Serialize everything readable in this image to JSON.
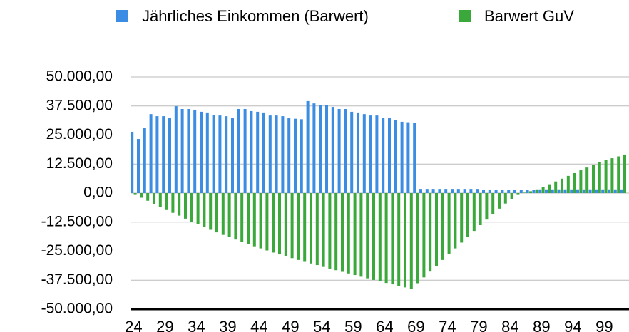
{
  "chart_data": {
    "type": "bar",
    "categories": [
      "24",
      null,
      null,
      null,
      null,
      "29",
      null,
      null,
      null,
      null,
      "34",
      null,
      null,
      null,
      null,
      "39",
      null,
      null,
      null,
      null,
      "44",
      null,
      null,
      null,
      null,
      "49",
      null,
      null,
      null,
      null,
      "54",
      null,
      null,
      null,
      null,
      "59",
      null,
      null,
      null,
      null,
      "64",
      null,
      null,
      null,
      null,
      "69",
      null,
      null,
      null,
      null,
      "74",
      null,
      null,
      null,
      null,
      "79",
      null,
      null,
      null,
      null,
      "84",
      null,
      null,
      null,
      null,
      "89",
      null,
      null,
      null,
      null,
      "94",
      null,
      null,
      null,
      null,
      "99",
      null,
      null,
      null
    ],
    "series": [
      {
        "name": "Jährliches Einkommen (Barwert)",
        "color": "#3a8de2",
        "values": [
          26400,
          23300,
          28200,
          34000,
          33100,
          33100,
          32200,
          37400,
          36200,
          36200,
          35600,
          35000,
          34700,
          33700,
          33400,
          33100,
          32200,
          36200,
          36200,
          35300,
          35000,
          34700,
          33400,
          33400,
          33100,
          32200,
          32000,
          31800,
          39600,
          38600,
          38000,
          38000,
          37100,
          36200,
          36200,
          35000,
          34700,
          34000,
          33400,
          33400,
          32500,
          32200,
          31300,
          30700,
          30500,
          30200,
          1800,
          1800,
          1800,
          1800,
          1800,
          1800,
          1800,
          1800,
          1800,
          1800,
          1400,
          1400,
          1400,
          1400,
          1400,
          1400,
          1400,
          1400,
          1400,
          1600,
          1600,
          1600,
          1600,
          1600,
          1600,
          1600,
          1600,
          1600,
          1600,
          1600,
          1600,
          1600,
          1600
        ]
      },
      {
        "name": "Barwert GuV",
        "color": "#3aa83a",
        "values": [
          -800,
          -2000,
          -3300,
          -4600,
          -6000,
          -7300,
          -8500,
          -9700,
          -11000,
          -12300,
          -13500,
          -14700,
          -15800,
          -16900,
          -18000,
          -19000,
          -20000,
          -21000,
          -22000,
          -22900,
          -23800,
          -24700,
          -25600,
          -26400,
          -27200,
          -28000,
          -28800,
          -29600,
          -30300,
          -31000,
          -31800,
          -32500,
          -33200,
          -33900,
          -34600,
          -35300,
          -36000,
          -36700,
          -37400,
          -38000,
          -38700,
          -39300,
          -40000,
          -40600,
          -41300,
          -38800,
          -36300,
          -33800,
          -31300,
          -28800,
          -26300,
          -23800,
          -21300,
          -18800,
          -16300,
          -13800,
          -11400,
          -9000,
          -6700,
          -4500,
          -2500,
          -800,
          200,
          800,
          1600,
          2700,
          3800,
          5000,
          6200,
          7400,
          8600,
          9800,
          11000,
          12200,
          13400,
          14200,
          15000,
          15800,
          16600
        ]
      }
    ],
    "ylim": [
      -50000,
      50000
    ],
    "yticks": [
      {
        "value": -50000,
        "label": "-50.000,00"
      },
      {
        "value": -37500,
        "label": "-37.500,00"
      },
      {
        "value": -25000,
        "label": "-25.000,00"
      },
      {
        "value": -12500,
        "label": "-12.500,00"
      },
      {
        "value": 0,
        "label": "0,00"
      },
      {
        "value": 12500,
        "label": "12.500,00"
      },
      {
        "value": 25000,
        "label": "25.000,00"
      },
      {
        "value": 37500,
        "label": "37.500,00"
      },
      {
        "value": 50000,
        "label": "50.000,00"
      }
    ],
    "grid": true
  }
}
